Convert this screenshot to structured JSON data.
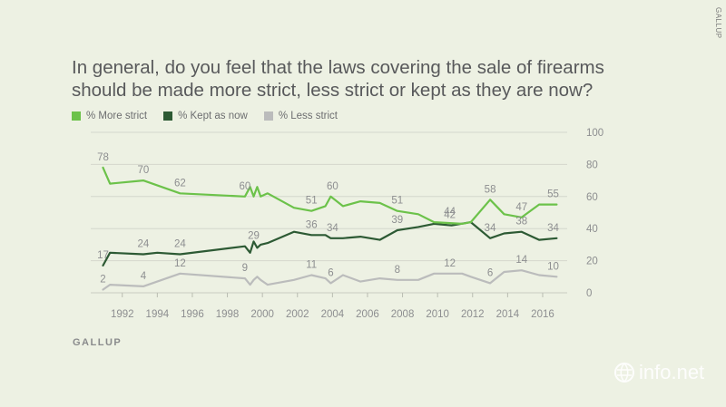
{
  "header": {
    "title": "In general, do you feel that the laws covering the sale of firearms should be made more strict, less strict or kept as they are now?",
    "source": "GALLUP",
    "corner_credit": "GALLUP",
    "logo_text": "info.net"
  },
  "colors": {
    "background": "#edf1e3",
    "more_strict": "#6cc24a",
    "kept_as_now": "#2d5a34",
    "less_strict": "#bbbcbc",
    "grid": "#d4d7cc"
  },
  "legend": [
    {
      "label": "% More strict",
      "color": "#6cc24a"
    },
    {
      "label": "% Kept as now",
      "color": "#2d5a34"
    },
    {
      "label": "% Less strict",
      "color": "#bbbcbc"
    }
  ],
  "chart_data": {
    "type": "line",
    "xlabel": "",
    "ylabel": "",
    "xlim": [
      1990.2,
      2017.4
    ],
    "ylim": [
      0,
      100
    ],
    "x_ticks": [
      1992,
      1994,
      1996,
      1998,
      2000,
      2002,
      2004,
      2006,
      2008,
      2010,
      2012,
      2014,
      2016
    ],
    "y_ticks": [
      0,
      20,
      40,
      60,
      80,
      100
    ],
    "legend_position": "top-left",
    "grid": "horizontal",
    "series": [
      {
        "name": "% More strict",
        "color": "#6cc24a",
        "points": [
          [
            1990.9,
            78
          ],
          [
            1991.3,
            68
          ],
          [
            1993.2,
            70
          ],
          [
            1995.3,
            62
          ],
          [
            1999.0,
            60
          ],
          [
            1999.3,
            66
          ],
          [
            1999.5,
            60
          ],
          [
            1999.7,
            66
          ],
          [
            1999.9,
            60
          ],
          [
            2000.3,
            62
          ],
          [
            2001.8,
            53
          ],
          [
            2002.8,
            51
          ],
          [
            2003.6,
            54
          ],
          [
            2003.9,
            60
          ],
          [
            2004.6,
            54
          ],
          [
            2005.6,
            57
          ],
          [
            2006.7,
            56
          ],
          [
            2007.7,
            51
          ],
          [
            2008.9,
            49
          ],
          [
            2009.8,
            44
          ],
          [
            2011.4,
            43
          ],
          [
            2011.9,
            44
          ],
          [
            2013.0,
            58
          ],
          [
            2013.8,
            49
          ],
          [
            2014.8,
            47
          ],
          [
            2015.8,
            55
          ],
          [
            2016.8,
            55
          ]
        ],
        "labels": [
          [
            1990.9,
            78,
            "78"
          ],
          [
            1993.2,
            70,
            "70"
          ],
          [
            1995.3,
            62,
            "62"
          ],
          [
            1999.0,
            60,
            "60"
          ],
          [
            2002.8,
            51,
            "51"
          ],
          [
            2004.0,
            60,
            "60"
          ],
          [
            2007.7,
            51,
            "51"
          ],
          [
            2010.7,
            44,
            "44"
          ],
          [
            2013.0,
            58,
            "58"
          ],
          [
            2014.8,
            47,
            "47"
          ],
          [
            2016.6,
            55,
            "55"
          ]
        ]
      },
      {
        "name": "% Kept as now",
        "color": "#2d5a34",
        "points": [
          [
            1990.9,
            17
          ],
          [
            1991.3,
            25
          ],
          [
            1993.2,
            24
          ],
          [
            1994.0,
            25
          ],
          [
            1995.3,
            24
          ],
          [
            1999.0,
            29
          ],
          [
            1999.3,
            25
          ],
          [
            1999.5,
            32
          ],
          [
            1999.7,
            28
          ],
          [
            1999.9,
            30
          ],
          [
            2000.3,
            31
          ],
          [
            2001.8,
            38
          ],
          [
            2002.8,
            36
          ],
          [
            2003.6,
            36
          ],
          [
            2003.9,
            34
          ],
          [
            2004.6,
            34
          ],
          [
            2005.6,
            35
          ],
          [
            2006.7,
            33
          ],
          [
            2007.7,
            39
          ],
          [
            2008.9,
            41
          ],
          [
            2009.8,
            43
          ],
          [
            2010.8,
            42
          ],
          [
            2011.9,
            44
          ],
          [
            2013.0,
            34
          ],
          [
            2013.8,
            37
          ],
          [
            2014.8,
            38
          ],
          [
            2015.8,
            33
          ],
          [
            2016.8,
            34
          ]
        ],
        "labels": [
          [
            1990.9,
            17,
            "17"
          ],
          [
            1993.2,
            24,
            "24"
          ],
          [
            1995.3,
            24,
            "24"
          ],
          [
            1999.5,
            29,
            "29"
          ],
          [
            2002.8,
            36,
            "36"
          ],
          [
            2004.0,
            34,
            "34"
          ],
          [
            2007.7,
            39,
            "39"
          ],
          [
            2010.7,
            42,
            "42"
          ],
          [
            2013.0,
            34,
            "34"
          ],
          [
            2014.8,
            38,
            "38"
          ],
          [
            2016.6,
            34,
            "34"
          ]
        ]
      },
      {
        "name": "% Less strict",
        "color": "#bbbcbc",
        "points": [
          [
            1990.9,
            2
          ],
          [
            1991.3,
            5
          ],
          [
            1993.2,
            4
          ],
          [
            1995.3,
            12
          ],
          [
            1999.0,
            9
          ],
          [
            1999.3,
            5
          ],
          [
            1999.5,
            8
          ],
          [
            1999.7,
            10
          ],
          [
            1999.9,
            8
          ],
          [
            2000.3,
            5
          ],
          [
            2001.8,
            8
          ],
          [
            2002.8,
            11
          ],
          [
            2003.6,
            9
          ],
          [
            2003.9,
            6
          ],
          [
            2004.6,
            11
          ],
          [
            2005.6,
            7
          ],
          [
            2006.7,
            9
          ],
          [
            2007.7,
            8
          ],
          [
            2008.9,
            8
          ],
          [
            2009.8,
            12
          ],
          [
            2011.4,
            12
          ],
          [
            2011.9,
            10
          ],
          [
            2013.0,
            6
          ],
          [
            2013.8,
            13
          ],
          [
            2014.8,
            14
          ],
          [
            2015.8,
            11
          ],
          [
            2016.8,
            10
          ]
        ],
        "labels": [
          [
            1990.9,
            2,
            "2"
          ],
          [
            1993.2,
            4,
            "4"
          ],
          [
            1995.3,
            12,
            "12"
          ],
          [
            1999.0,
            9,
            "9"
          ],
          [
            2002.8,
            11,
            "11"
          ],
          [
            2003.9,
            6,
            "6"
          ],
          [
            2007.7,
            8,
            "8"
          ],
          [
            2010.7,
            12,
            "12"
          ],
          [
            2013.0,
            6,
            "6"
          ],
          [
            2014.8,
            14,
            "14"
          ],
          [
            2016.6,
            10,
            "10"
          ]
        ]
      }
    ]
  }
}
